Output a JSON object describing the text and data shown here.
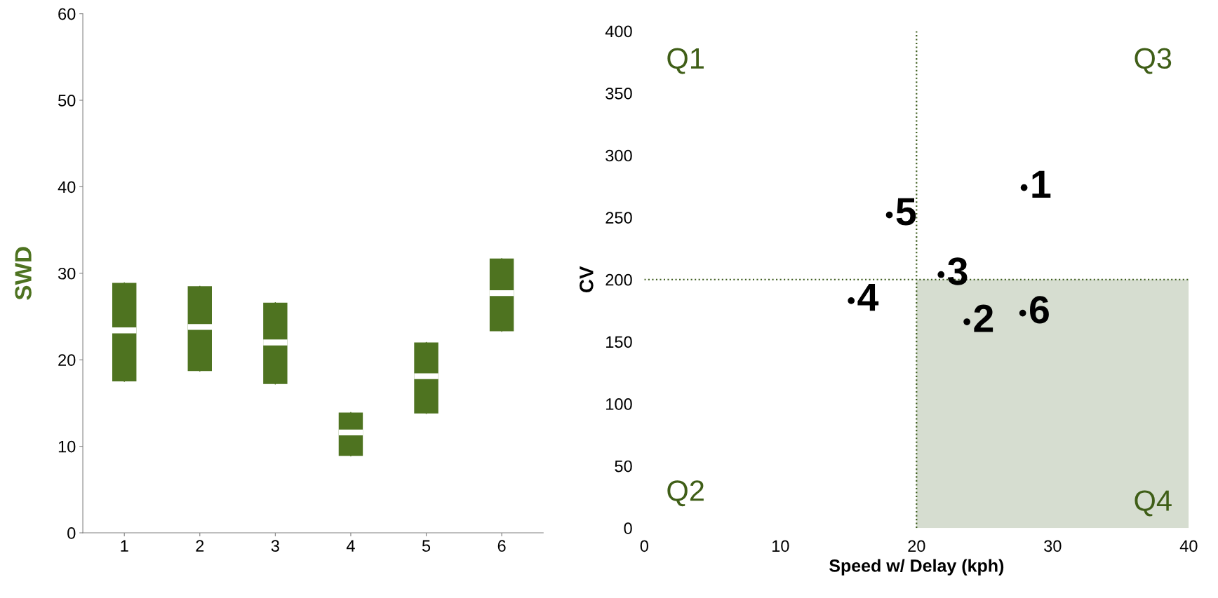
{
  "chart_data": [
    {
      "type": "box",
      "ylabel": "SWD",
      "categories": [
        "1",
        "2",
        "3",
        "4",
        "5",
        "6"
      ],
      "ylim": [
        0,
        60
      ],
      "yticks": [
        0,
        10,
        20,
        30,
        40,
        50,
        60
      ],
      "grid": false,
      "series": [
        {
          "color": "#4e7320",
          "boxes": [
            {
              "low": 17.5,
              "q1": 17.5,
              "median": 23.4,
              "q3": 28.9,
              "high": 28.9
            },
            {
              "low": 18.7,
              "q1": 18.7,
              "median": 23.8,
              "q3": 28.5,
              "high": 28.5
            },
            {
              "low": 17.2,
              "q1": 17.2,
              "median": 22.0,
              "q3": 26.6,
              "high": 26.6
            },
            {
              "low": 8.9,
              "q1": 8.9,
              "median": 11.6,
              "q3": 13.9,
              "high": 13.9
            },
            {
              "low": 13.8,
              "q1": 13.8,
              "median": 18.1,
              "q3": 22.0,
              "high": 22.0
            },
            {
              "low": 23.3,
              "q1": 23.3,
              "median": 27.7,
              "q3": 31.7,
              "high": 31.7
            }
          ]
        }
      ]
    },
    {
      "type": "scatter",
      "xlabel": "Speed w/ Delay (kph)",
      "ylabel": "CV",
      "xlim": [
        0,
        40
      ],
      "xticks": [
        0,
        10,
        20,
        30,
        40
      ],
      "ylim": [
        0,
        400
      ],
      "yticks": [
        0,
        50,
        100,
        150,
        200,
        250,
        300,
        350,
        400
      ],
      "grid": false,
      "marker": "circle",
      "series": [
        {
          "name": "1",
          "color": "#000000",
          "x": [
            27.9
          ],
          "values": [
            274
          ]
        },
        {
          "name": "2",
          "color": "#000000",
          "x": [
            23.7
          ],
          "values": [
            166
          ]
        },
        {
          "name": "3",
          "color": "#000000",
          "x": [
            21.8
          ],
          "values": [
            204
          ]
        },
        {
          "name": "4",
          "color": "#000000",
          "x": [
            15.2
          ],
          "values": [
            183
          ]
        },
        {
          "name": "5",
          "color": "#000000",
          "x": [
            18.0
          ],
          "values": [
            252
          ]
        },
        {
          "name": "6",
          "color": "#000000",
          "x": [
            27.8
          ],
          "values": [
            173
          ]
        }
      ],
      "ref_lines": [
        {
          "axis": "x",
          "value": 20,
          "color": "#3a5a1a",
          "line_style": "dotted"
        },
        {
          "axis": "y",
          "value": 200,
          "color": "#3a5a1a",
          "line_style": "dotted"
        }
      ],
      "bands": [
        {
          "axis": "x",
          "from": 20,
          "to": 40,
          "color": "#d6ddd0"
        }
      ],
      "annotations": [
        "Q1",
        "Q2",
        "Q3",
        "Q4"
      ]
    }
  ]
}
